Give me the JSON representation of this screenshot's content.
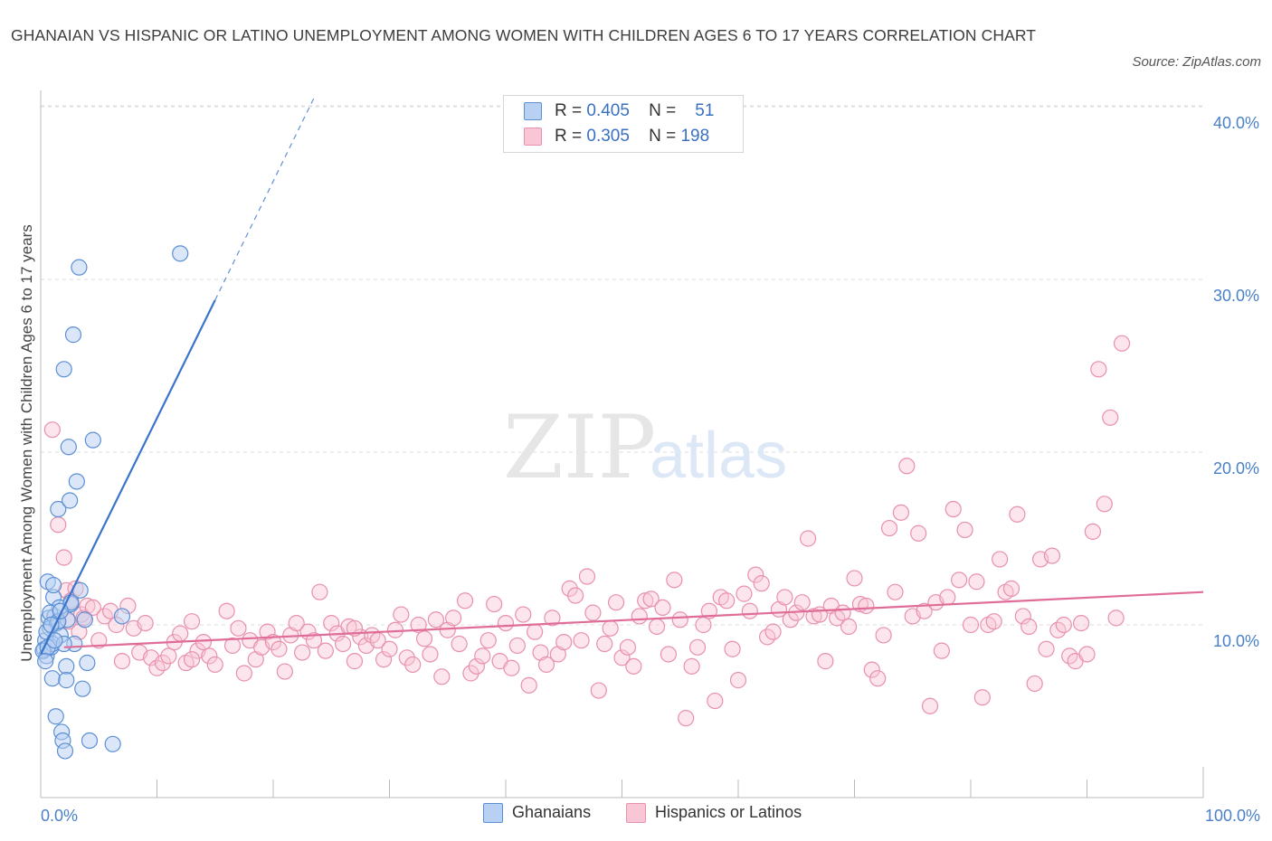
{
  "title": "GHANAIAN VS HISPANIC OR LATINO UNEMPLOYMENT AMONG WOMEN WITH CHILDREN AGES 6 TO 17 YEARS CORRELATION CHART",
  "source": "Source: ZipAtlas.com",
  "watermark": {
    "zip": "ZIP",
    "atlas": "atlas"
  },
  "legend": {
    "r_label": "R =",
    "n_label": "N =",
    "rows": [
      {
        "r": "0.405",
        "n": "51"
      },
      {
        "r": "0.305",
        "n": "198"
      }
    ]
  },
  "colors": {
    "ghanaian_fill": "#b8d0f2",
    "ghanaian_stroke": "#5b8fd4",
    "ghanaian_line": "#3a74cc",
    "hispanic_fill": "#f8c6d5",
    "hispanic_stroke": "#e890ad",
    "hispanic_line": "#e06c98",
    "grid": "#dddddd",
    "tick_text": "#4a80c8"
  },
  "chart_data": {
    "type": "scatter",
    "title": "GHANAIAN VS HISPANIC OR LATINO UNEMPLOYMENT AMONG WOMEN WITH CHILDREN AGES 6 TO 17 YEARS CORRELATION CHART",
    "xlabel": "",
    "ylabel": "Unemployment Among Women with Children Ages 6 to 17 years",
    "x_tick_labels": [
      "0.0%",
      "100.0%"
    ],
    "y_tick_labels": [
      "10.0%",
      "20.0%",
      "30.0%",
      "40.0%"
    ],
    "y_ticks": [
      10,
      20,
      30,
      40
    ],
    "xlim": [
      0,
      100
    ],
    "ylim": [
      0,
      42
    ],
    "grid": "horizontal dashed",
    "legend_position": "bottom",
    "series": [
      {
        "name": "Ghanaians",
        "r": 0.405,
        "n": 51,
        "trend": {
          "x": [
            0.0,
            15.0
          ],
          "y": [
            8.3,
            28.8
          ],
          "extrapolate_to": [
            23.5,
            40.5
          ]
        },
        "points": [
          [
            0.3,
            8.6
          ],
          [
            0.4,
            9.1
          ],
          [
            0.5,
            8.2
          ],
          [
            0.6,
            12.5
          ],
          [
            0.7,
            10.4
          ],
          [
            0.8,
            9.8
          ],
          [
            0.9,
            8.7
          ],
          [
            1.0,
            6.9
          ],
          [
            1.1,
            11.6
          ],
          [
            1.2,
            10.5
          ],
          [
            1.3,
            4.7
          ],
          [
            1.4,
            10.1
          ],
          [
            1.5,
            16.7
          ],
          [
            1.6,
            11.0
          ],
          [
            1.7,
            9.4
          ],
          [
            1.8,
            3.8
          ],
          [
            1.9,
            3.3
          ],
          [
            2.0,
            24.8
          ],
          [
            2.1,
            2.7
          ],
          [
            2.2,
            7.6
          ],
          [
            2.3,
            10.3
          ],
          [
            2.4,
            20.3
          ],
          [
            2.5,
            17.2
          ],
          [
            2.6,
            11.2
          ],
          [
            2.8,
            26.8
          ],
          [
            2.9,
            8.9
          ],
          [
            3.1,
            18.3
          ],
          [
            3.3,
            30.7
          ],
          [
            3.6,
            6.3
          ],
          [
            3.8,
            10.3
          ],
          [
            4.0,
            7.8
          ],
          [
            4.2,
            3.3
          ],
          [
            4.5,
            20.7
          ],
          [
            6.2,
            3.1
          ],
          [
            12.0,
            31.5
          ],
          [
            0.5,
            9.6
          ],
          [
            0.8,
            10.7
          ],
          [
            1.0,
            8.9
          ],
          [
            1.5,
            10.2
          ],
          [
            2.0,
            8.9
          ],
          [
            0.2,
            8.5
          ],
          [
            0.6,
            8.7
          ],
          [
            1.2,
            9.1
          ],
          [
            2.6,
            11.3
          ],
          [
            3.4,
            12.0
          ],
          [
            0.9,
            10.0
          ],
          [
            1.7,
            10.8
          ],
          [
            2.2,
            6.8
          ],
          [
            7.0,
            10.5
          ],
          [
            0.4,
            7.9
          ],
          [
            1.1,
            12.3
          ]
        ]
      },
      {
        "name": "Hispanics or Latinos",
        "r": 0.305,
        "n": 198,
        "trend": {
          "x": [
            2.0,
            100.0
          ],
          "y": [
            8.7,
            11.9
          ]
        },
        "points": [
          [
            1.0,
            21.3
          ],
          [
            1.5,
            15.8
          ],
          [
            2.0,
            13.9
          ],
          [
            2.2,
            12.0
          ],
          [
            2.4,
            10.2
          ],
          [
            2.6,
            11.4
          ],
          [
            3.0,
            12.1
          ],
          [
            3.3,
            9.6
          ],
          [
            3.5,
            10.6
          ],
          [
            3.7,
            10.4
          ],
          [
            4.0,
            11.1
          ],
          [
            4.5,
            11.0
          ],
          [
            5.0,
            9.1
          ],
          [
            5.5,
            10.5
          ],
          [
            6.0,
            10.8
          ],
          [
            6.5,
            10.0
          ],
          [
            7.0,
            7.9
          ],
          [
            7.5,
            11.1
          ],
          [
            8.0,
            9.8
          ],
          [
            8.5,
            8.4
          ],
          [
            9.0,
            10.1
          ],
          [
            9.5,
            8.1
          ],
          [
            10.0,
            7.5
          ],
          [
            10.5,
            7.8
          ],
          [
            11.0,
            8.2
          ],
          [
            11.5,
            9.0
          ],
          [
            12.0,
            9.5
          ],
          [
            12.5,
            7.8
          ],
          [
            13.0,
            10.2
          ],
          [
            13.5,
            8.5
          ],
          [
            14.0,
            9.0
          ],
          [
            14.5,
            8.2
          ],
          [
            15.0,
            7.7
          ],
          [
            16.0,
            10.8
          ],
          [
            16.5,
            8.8
          ],
          [
            17.0,
            9.8
          ],
          [
            17.5,
            7.2
          ],
          [
            18.0,
            9.1
          ],
          [
            18.5,
            8.0
          ],
          [
            19.0,
            8.7
          ],
          [
            19.5,
            9.6
          ],
          [
            20.0,
            9.0
          ],
          [
            20.5,
            8.6
          ],
          [
            21.0,
            7.3
          ],
          [
            21.5,
            9.4
          ],
          [
            22.0,
            10.1
          ],
          [
            22.5,
            8.4
          ],
          [
            23.0,
            9.6
          ],
          [
            23.5,
            9.1
          ],
          [
            24.0,
            11.9
          ],
          [
            24.5,
            8.5
          ],
          [
            25.0,
            10.1
          ],
          [
            25.5,
            9.5
          ],
          [
            26.0,
            8.9
          ],
          [
            26.5,
            9.9
          ],
          [
            27.0,
            7.9
          ],
          [
            27.5,
            9.3
          ],
          [
            28.0,
            8.8
          ],
          [
            28.5,
            9.4
          ],
          [
            29.0,
            9.1
          ],
          [
            29.5,
            8.0
          ],
          [
            30.0,
            8.6
          ],
          [
            30.5,
            9.7
          ],
          [
            31.0,
            10.6
          ],
          [
            31.5,
            8.1
          ],
          [
            32.0,
            7.7
          ],
          [
            32.5,
            10.0
          ],
          [
            33.0,
            9.2
          ],
          [
            33.5,
            8.3
          ],
          [
            34.0,
            10.3
          ],
          [
            34.5,
            7.0
          ],
          [
            35.0,
            9.7
          ],
          [
            35.5,
            10.4
          ],
          [
            36.0,
            8.9
          ],
          [
            36.5,
            11.4
          ],
          [
            37.0,
            7.2
          ],
          [
            37.5,
            7.6
          ],
          [
            38.0,
            8.2
          ],
          [
            38.5,
            9.1
          ],
          [
            39.0,
            11.2
          ],
          [
            39.5,
            7.9
          ],
          [
            40.0,
            10.1
          ],
          [
            40.5,
            7.5
          ],
          [
            41.0,
            8.8
          ],
          [
            41.5,
            10.6
          ],
          [
            42.0,
            6.5
          ],
          [
            42.5,
            9.6
          ],
          [
            43.0,
            8.4
          ],
          [
            43.5,
            7.7
          ],
          [
            44.0,
            10.4
          ],
          [
            44.5,
            8.3
          ],
          [
            45.0,
            9.0
          ],
          [
            45.5,
            12.1
          ],
          [
            46.0,
            11.7
          ],
          [
            46.5,
            9.1
          ],
          [
            47.0,
            12.8
          ],
          [
            47.5,
            10.7
          ],
          [
            48.0,
            6.2
          ],
          [
            48.5,
            8.9
          ],
          [
            49.0,
            9.8
          ],
          [
            49.5,
            11.3
          ],
          [
            50.0,
            8.1
          ],
          [
            50.5,
            8.7
          ],
          [
            51.0,
            7.6
          ],
          [
            51.5,
            10.5
          ],
          [
            52.0,
            11.4
          ],
          [
            52.5,
            11.5
          ],
          [
            53.0,
            9.9
          ],
          [
            53.5,
            11.0
          ],
          [
            54.0,
            8.3
          ],
          [
            54.5,
            12.6
          ],
          [
            55.0,
            10.3
          ],
          [
            55.5,
            4.6
          ],
          [
            56.0,
            7.6
          ],
          [
            56.5,
            8.7
          ],
          [
            57.0,
            10.0
          ],
          [
            57.5,
            10.8
          ],
          [
            58.0,
            5.6
          ],
          [
            58.5,
            11.6
          ],
          [
            59.0,
            11.4
          ],
          [
            59.5,
            8.6
          ],
          [
            60.0,
            6.8
          ],
          [
            60.5,
            11.8
          ],
          [
            61.0,
            10.8
          ],
          [
            61.5,
            12.9
          ],
          [
            62.0,
            12.4
          ],
          [
            62.5,
            9.3
          ],
          [
            63.0,
            9.6
          ],
          [
            63.5,
            10.9
          ],
          [
            64.0,
            11.6
          ],
          [
            64.5,
            10.3
          ],
          [
            65.0,
            10.7
          ],
          [
            65.5,
            11.3
          ],
          [
            66.0,
            15.0
          ],
          [
            66.5,
            10.5
          ],
          [
            67.0,
            10.6
          ],
          [
            67.5,
            7.9
          ],
          [
            68.0,
            11.1
          ],
          [
            68.5,
            10.4
          ],
          [
            69.0,
            10.7
          ],
          [
            69.5,
            9.9
          ],
          [
            70.0,
            12.7
          ],
          [
            70.5,
            11.2
          ],
          [
            71.0,
            11.1
          ],
          [
            71.5,
            7.4
          ],
          [
            72.0,
            6.9
          ],
          [
            72.5,
            9.4
          ],
          [
            73.0,
            15.6
          ],
          [
            73.5,
            11.9
          ],
          [
            74.0,
            16.5
          ],
          [
            74.5,
            19.2
          ],
          [
            75.0,
            10.5
          ],
          [
            75.5,
            15.3
          ],
          [
            76.0,
            10.8
          ],
          [
            76.5,
            5.3
          ],
          [
            77.0,
            11.3
          ],
          [
            77.5,
            8.5
          ],
          [
            78.0,
            11.6
          ],
          [
            78.5,
            16.7
          ],
          [
            79.0,
            12.6
          ],
          [
            79.5,
            15.5
          ],
          [
            80.0,
            10.0
          ],
          [
            80.5,
            12.5
          ],
          [
            81.0,
            5.8
          ],
          [
            81.5,
            10.0
          ],
          [
            82.0,
            10.2
          ],
          [
            82.5,
            13.8
          ],
          [
            83.0,
            11.9
          ],
          [
            83.5,
            12.1
          ],
          [
            84.0,
            16.4
          ],
          [
            84.5,
            10.5
          ],
          [
            85.0,
            9.9
          ],
          [
            85.5,
            6.6
          ],
          [
            86.0,
            13.8
          ],
          [
            86.5,
            8.6
          ],
          [
            87.0,
            14.0
          ],
          [
            87.5,
            9.7
          ],
          [
            88.0,
            10.0
          ],
          [
            88.5,
            8.2
          ],
          [
            89.0,
            7.9
          ],
          [
            89.5,
            10.1
          ],
          [
            90.0,
            8.3
          ],
          [
            90.5,
            15.4
          ],
          [
            91.0,
            24.8
          ],
          [
            91.5,
            17.0
          ],
          [
            92.0,
            22.0
          ],
          [
            92.5,
            10.4
          ],
          [
            93.0,
            26.3
          ],
          [
            13.0,
            8.0
          ],
          [
            27.0,
            9.8
          ]
        ]
      }
    ]
  },
  "bottom_legend": [
    "Ghanaians",
    "Hispanics or Latinos"
  ]
}
